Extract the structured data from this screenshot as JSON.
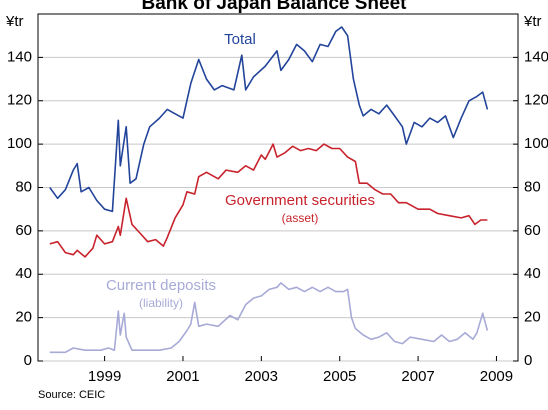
{
  "chart_data": {
    "type": "line",
    "title": "Bank of Japan Balance Sheet",
    "ylabel": "¥tr",
    "y2label": "¥tr",
    "source": "Source: CEIC",
    "xlim": [
      1997.8,
      2010.05
    ],
    "xticks": [
      {
        "value": 1999.5,
        "label": "1999"
      },
      {
        "value": 2001.5,
        "label": "2001"
      },
      {
        "value": 2003.5,
        "label": "2003"
      },
      {
        "value": 2005.5,
        "label": "2005"
      },
      {
        "value": 2007.5,
        "label": "2007"
      },
      {
        "value": 2009.5,
        "label": "2009"
      }
    ],
    "ylim": [
      0,
      160
    ],
    "yticks": [
      0,
      20,
      40,
      60,
      80,
      100,
      120,
      140
    ],
    "y2lim": [
      0,
      160
    ],
    "y2ticks": [
      0,
      20,
      40,
      60,
      80,
      100,
      120,
      140
    ],
    "grid": true,
    "series": [
      {
        "name": "Total",
        "color": "#22449a",
        "x": [
          1998.1,
          1998.3,
          1998.5,
          1998.7,
          1998.8,
          1998.9,
          1999.1,
          1999.3,
          1999.5,
          1999.7,
          1999.85,
          1999.9,
          2000.05,
          2000.15,
          2000.3,
          2000.5,
          2000.65,
          2000.9,
          2001.1,
          2001.3,
          2001.5,
          2001.7,
          2001.9,
          2002.1,
          2002.3,
          2002.5,
          2002.8,
          2003.0,
          2003.1,
          2003.3,
          2003.6,
          2003.9,
          2004.0,
          2004.2,
          2004.4,
          2004.6,
          2004.8,
          2005.0,
          2005.2,
          2005.4,
          2005.55,
          2005.7,
          2005.85,
          2006.0,
          2006.1,
          2006.3,
          2006.5,
          2006.7,
          2006.9,
          2007.1,
          2007.2,
          2007.4,
          2007.6,
          2007.8,
          2008.0,
          2008.2,
          2008.4,
          2008.6,
          2008.8,
          2009.0,
          2009.15,
          2009.27
        ],
        "values": [
          80,
          75,
          79,
          88,
          91,
          78,
          80,
          74,
          70,
          69,
          111,
          90,
          108,
          82,
          84,
          100,
          108,
          112,
          116,
          114,
          112,
          128,
          139,
          130,
          125,
          127,
          125,
          141,
          125,
          131,
          136,
          143,
          134,
          139,
          146,
          143,
          138,
          146,
          145,
          152,
          154,
          150,
          130,
          118,
          113,
          116,
          114,
          118,
          113,
          108,
          100,
          110,
          108,
          112,
          110,
          113,
          103,
          112,
          120,
          122,
          124,
          116
        ]
      },
      {
        "name": "Government securities",
        "color": "#c8232c",
        "x": [
          1998.1,
          1998.3,
          1998.5,
          1998.7,
          1998.8,
          1999.0,
          1999.2,
          1999.3,
          1999.5,
          1999.7,
          1999.85,
          1999.9,
          2000.05,
          2000.2,
          2000.4,
          2000.6,
          2000.8,
          2001.0,
          2001.1,
          2001.3,
          2001.5,
          2001.6,
          2001.8,
          2001.9,
          2002.1,
          2002.4,
          2002.6,
          2002.9,
          2003.1,
          2003.3,
          2003.5,
          2003.6,
          2003.8,
          2003.9,
          2004.1,
          2004.3,
          2004.5,
          2004.7,
          2004.9,
          2005.1,
          2005.3,
          2005.5,
          2005.7,
          2005.9,
          2006.0,
          2006.2,
          2006.4,
          2006.6,
          2006.8,
          2007.0,
          2007.2,
          2007.5,
          2007.8,
          2008.0,
          2008.3,
          2008.6,
          2008.8,
          2008.95,
          2009.1,
          2009.27
        ],
        "values": [
          54,
          55,
          50,
          49,
          51,
          48,
          52,
          58,
          54,
          55,
          62,
          58,
          75,
          63,
          59,
          55,
          56,
          53,
          57,
          66,
          72,
          78,
          77,
          85,
          87,
          84,
          88,
          87,
          90,
          88,
          95,
          93,
          100,
          94,
          96,
          99,
          97,
          98,
          97,
          100,
          98,
          98,
          94,
          92,
          82,
          82,
          79,
          77,
          77,
          73,
          73,
          70,
          70,
          68,
          67,
          66,
          67,
          63,
          65,
          65
        ]
      },
      {
        "name": "Current deposits",
        "color": "#a7aad6",
        "x": [
          1998.1,
          1998.5,
          1998.7,
          1999.0,
          1999.4,
          1999.6,
          1999.75,
          1999.85,
          1999.9,
          2000.0,
          2000.05,
          2000.2,
          2000.6,
          2000.9,
          2001.2,
          2001.4,
          2001.6,
          2001.7,
          2001.8,
          2001.9,
          2002.1,
          2002.4,
          2002.7,
          2002.9,
          2003.1,
          2003.3,
          2003.5,
          2003.7,
          2003.9,
          2004.0,
          2004.2,
          2004.4,
          2004.6,
          2004.8,
          2005.0,
          2005.2,
          2005.4,
          2005.6,
          2005.7,
          2005.8,
          2005.9,
          2006.1,
          2006.3,
          2006.5,
          2006.7,
          2006.9,
          2007.1,
          2007.3,
          2007.6,
          2007.9,
          2008.1,
          2008.3,
          2008.5,
          2008.7,
          2008.9,
          2009.0,
          2009.15,
          2009.27
        ],
        "values": [
          4,
          4,
          6,
          5,
          5,
          6,
          5,
          23,
          12,
          22,
          11,
          5,
          5,
          5,
          6,
          9,
          14,
          17,
          27,
          16,
          17,
          16,
          21,
          19,
          26,
          29,
          30,
          33,
          34,
          36,
          33,
          34,
          32,
          34,
          32,
          34,
          32,
          32,
          33,
          20,
          15,
          12,
          10,
          11,
          13,
          9,
          8,
          11,
          10,
          9,
          12,
          9,
          10,
          13,
          10,
          13,
          22,
          14
        ]
      }
    ],
    "annotations": [
      {
        "text": "Total"
      },
      {
        "text": "Government securities"
      },
      {
        "text": "(asset)"
      },
      {
        "text": "Current deposits"
      },
      {
        "text": "(liability)"
      }
    ]
  }
}
